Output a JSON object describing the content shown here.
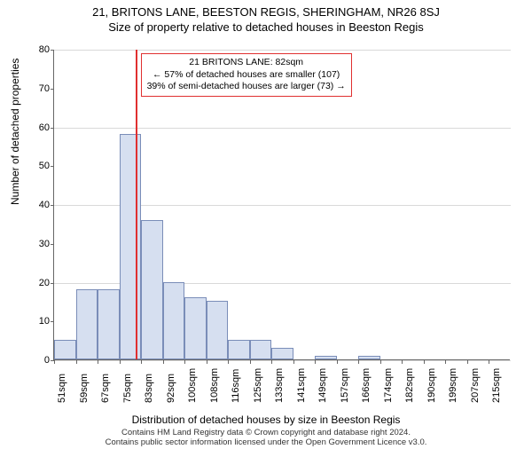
{
  "title": "21, BRITONS LANE, BEESTON REGIS, SHERINGHAM, NR26 8SJ",
  "subtitle": "Size of property relative to detached houses in Beeston Regis",
  "yaxis_label": "Number of detached properties",
  "xaxis_label": "Distribution of detached houses by size in Beeston Regis",
  "ylim": [
    0,
    80
  ],
  "ytick_step": 10,
  "ygrid_step": 20,
  "bar_color": "#d6dff0",
  "bar_border": "#7a8db8",
  "ref_color": "#e03030",
  "ref_x_sqm": 82,
  "info_box": {
    "line1": "21 BRITONS LANE: 82sqm",
    "line2": "← 57% of detached houses are smaller (107)",
    "line3": "39% of semi-detached houses are larger (73) →"
  },
  "x_start": 51,
  "x_step": 8.3,
  "n_bars": 21,
  "x_labels": [
    "51sqm",
    "59sqm",
    "67sqm",
    "75sqm",
    "83sqm",
    "92sqm",
    "100sqm",
    "108sqm",
    "116sqm",
    "125sqm",
    "133sqm",
    "141sqm",
    "149sqm",
    "157sqm",
    "166sqm",
    "174sqm",
    "182sqm",
    "190sqm",
    "199sqm",
    "207sqm",
    "215sqm"
  ],
  "values": [
    5,
    18,
    18,
    58,
    36,
    20,
    16,
    15,
    5,
    5,
    3,
    0,
    1,
    0,
    1,
    0,
    0,
    0,
    0,
    0,
    0
  ],
  "attribution_line1": "Contains HM Land Registry data © Crown copyright and database right 2024.",
  "attribution_line2": "Contains public sector information licensed under the Open Government Licence v3.0."
}
